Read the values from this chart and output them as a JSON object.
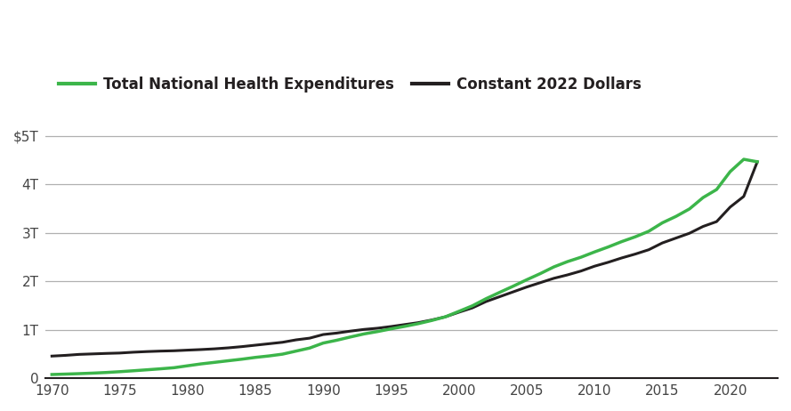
{
  "years": [
    1970,
    1971,
    1972,
    1973,
    1974,
    1975,
    1976,
    1977,
    1978,
    1979,
    1980,
    1981,
    1982,
    1983,
    1984,
    1985,
    1986,
    1987,
    1988,
    1989,
    1990,
    1991,
    1992,
    1993,
    1994,
    1995,
    1996,
    1997,
    1998,
    1999,
    2000,
    2001,
    2002,
    2003,
    2004,
    2005,
    2006,
    2007,
    2008,
    2009,
    2010,
    2011,
    2012,
    2013,
    2014,
    2015,
    2016,
    2017,
    2018,
    2019,
    2020,
    2021,
    2022
  ],
  "nominal_billions": [
    74.9,
    83.3,
    92.6,
    103.2,
    116.4,
    133.0,
    152.0,
    172.0,
    192.4,
    215.0,
    255.0,
    294.0,
    326.0,
    359.0,
    391.0,
    428.0,
    458.0,
    495.0,
    558.0,
    621.0,
    724.0,
    782.0,
    849.0,
    912.0,
    961.0,
    1017.0,
    1068.0,
    1124.0,
    1190.0,
    1265.0,
    1378.0,
    1493.0,
    1639.0,
    1769.0,
    1897.0,
    2030.0,
    2157.0,
    2295.0,
    2404.0,
    2495.0,
    2604.0,
    2706.0,
    2817.0,
    2916.0,
    3031.0,
    3205.0,
    3337.0,
    3492.0,
    3726.0,
    3892.0,
    4262.0,
    4516.0,
    4465.0
  ],
  "constant_2022_billions": [
    455.0,
    470.0,
    490.0,
    500.0,
    510.0,
    518.0,
    535.0,
    548.0,
    558.0,
    565.0,
    578.0,
    590.0,
    605.0,
    625.0,
    650.0,
    680.0,
    710.0,
    740.0,
    790.0,
    825.0,
    900.0,
    930.0,
    970.0,
    1005.0,
    1030.0,
    1065.0,
    1105.0,
    1145.0,
    1200.0,
    1265.0,
    1360.0,
    1450.0,
    1580.0,
    1680.0,
    1780.0,
    1880.0,
    1970.0,
    2060.0,
    2130.0,
    2210.0,
    2310.0,
    2390.0,
    2480.0,
    2560.0,
    2650.0,
    2790.0,
    2890.0,
    2990.0,
    3130.0,
    3230.0,
    3530.0,
    3750.0,
    4465.0
  ],
  "green_color": "#3cb54a",
  "black_color": "#231f20",
  "bg_color": "#ffffff",
  "grid_color": "#b0b0b0",
  "legend_label_nominal": "Total National Health Expenditures",
  "legend_label_constant": "Constant 2022 Dollars",
  "ytick_labels": [
    "0",
    "1T",
    "2T",
    "3T",
    "4T",
    "$5T"
  ],
  "ytick_values": [
    0,
    1000,
    2000,
    3000,
    4000,
    5000
  ],
  "xtick_values": [
    1970,
    1975,
    1980,
    1985,
    1990,
    1995,
    2000,
    2005,
    2010,
    2015,
    2020
  ],
  "ylim": [
    0,
    5200
  ],
  "xlim": [
    1969.5,
    2023.5
  ]
}
